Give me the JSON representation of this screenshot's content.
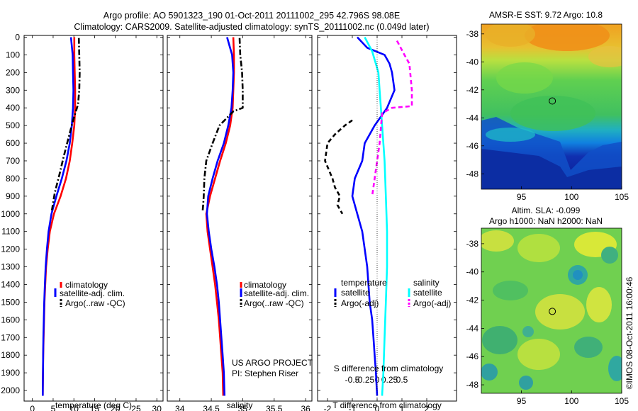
{
  "header": {
    "line1": "Argo profile: AO 5901323_190 01-Oct-2011 20111002_295 42.796S 98.08E",
    "line2": "Climatology: CARS2009. Satellite-adjusted climatology: synTS_20111002.nc (0.049d later)"
  },
  "depth_ticks": [
    "0",
    "100",
    "200",
    "300",
    "400",
    "500",
    "600",
    "700",
    "800",
    "900",
    "1000",
    "1100",
    "1200",
    "1300",
    "1400",
    "1500",
    "1600",
    "1700",
    "1800",
    "1900",
    "2000"
  ],
  "chart_data": [
    {
      "type": "line",
      "id": "temperature",
      "xlabel": "temperature (deg C)",
      "xlim": [
        -2,
        31.5
      ],
      "ylim": [
        2060,
        -10
      ],
      "xticks": [
        0,
        5,
        10,
        15,
        20,
        25,
        30
      ],
      "xtick_labels": [
        "0",
        "5",
        "10",
        "15",
        "20",
        "25",
        "30"
      ],
      "legend": [
        "climatology",
        "satellite-adj. clim.",
        "Argo(..raw -QC)"
      ],
      "series": [
        {
          "name": "climatology",
          "color": "#ff0000",
          "style": "solid",
          "x": [
            10.1,
            10.1,
            10.2,
            10.3,
            10.3,
            10.1,
            9.6,
            9.0,
            8.1,
            6.8,
            5.2,
            4.2,
            3.7,
            3.3,
            3.1,
            2.9,
            2.8,
            2.7,
            2.6,
            2.55,
            2.5
          ],
          "y": [
            0,
            100,
            200,
            300,
            400,
            500,
            600,
            700,
            800,
            900,
            1000,
            1100,
            1200,
            1300,
            1400,
            1500,
            1600,
            1700,
            1800,
            1900,
            2030
          ]
        },
        {
          "name": "satellite-adj. clim.",
          "color": "#0000ff",
          "style": "solid",
          "x": [
            9.3,
            9.7,
            9.8,
            9.9,
            9.8,
            9.5,
            9.0,
            8.2,
            7.1,
            5.8,
            4.6,
            3.9,
            3.5,
            3.2,
            3.0,
            2.85,
            2.75,
            2.65,
            2.6,
            2.55,
            2.5
          ],
          "y": [
            0,
            100,
            200,
            300,
            400,
            500,
            600,
            700,
            800,
            900,
            1000,
            1100,
            1200,
            1300,
            1400,
            1500,
            1600,
            1700,
            1800,
            1900,
            2030
          ]
        },
        {
          "name": "Argo(..raw -QC)",
          "color": "#000000",
          "style": "dashdot",
          "x": [
            11.2,
            11.3,
            11.4,
            11.3,
            11.0,
            9.7,
            8.6,
            7.5,
            6.5,
            5.4,
            4.7
          ],
          "y": [
            5,
            100,
            200,
            300,
            380,
            480,
            580,
            680,
            780,
            880,
            980
          ]
        }
      ]
    },
    {
      "type": "line",
      "id": "salinity",
      "xlabel": "salinity",
      "xlim": [
        33.8,
        36.1
      ],
      "ylim": [
        2060,
        -10
      ],
      "xticks": [
        34,
        34.5,
        35,
        35.5,
        36
      ],
      "xtick_labels": [
        "34",
        "34.5",
        "35",
        "35.5",
        "36"
      ],
      "legend": [
        "climatology",
        "satellite-adj. clim.",
        "Argo(..raw -QC)"
      ],
      "series": [
        {
          "name": "climatology",
          "color": "#ff0000",
          "style": "solid",
          "x": [
            34.85,
            34.86,
            34.86,
            34.85,
            34.84,
            34.8,
            34.73,
            34.64,
            34.56,
            34.48,
            34.42,
            34.44,
            34.48,
            34.52,
            34.56,
            34.59,
            34.62,
            34.64,
            34.66,
            34.68,
            34.69
          ],
          "y": [
            0,
            100,
            200,
            300,
            400,
            500,
            600,
            700,
            800,
            900,
            1000,
            1100,
            1200,
            1300,
            1400,
            1500,
            1600,
            1700,
            1800,
            1900,
            2030
          ]
        },
        {
          "name": "satellite-adj. clim.",
          "color": "#0000ff",
          "style": "solid",
          "x": [
            34.75,
            34.83,
            34.85,
            34.84,
            34.82,
            34.77,
            34.7,
            34.6,
            34.52,
            34.45,
            34.43,
            34.46,
            34.5,
            34.55,
            34.59,
            34.62,
            34.64,
            34.66,
            34.68,
            34.7,
            34.71
          ],
          "y": [
            0,
            100,
            200,
            300,
            400,
            500,
            600,
            700,
            800,
            900,
            1000,
            1100,
            1200,
            1300,
            1400,
            1500,
            1600,
            1700,
            1800,
            1900,
            2030
          ]
        },
        {
          "name": "Argo(..raw -QC)",
          "color": "#000000",
          "style": "dashdot",
          "x": [
            34.95,
            34.96,
            34.99,
            35.0,
            35.0,
            34.85,
            34.63,
            34.52,
            34.42,
            34.39,
            34.38,
            34.37,
            34.36
          ],
          "y": [
            5,
            100,
            200,
            300,
            400,
            420,
            500,
            600,
            700,
            800,
            900,
            950,
            990
          ]
        }
      ]
    },
    {
      "type": "line",
      "id": "difference",
      "xlabel": "T difference from climatology",
      "xlabel2": "S difference from climatology",
      "xlim": [
        -2.4,
        3.2
      ],
      "ylim": [
        2060,
        -10
      ],
      "xticks": [
        -2,
        -1,
        0,
        1,
        2
      ],
      "xtick_labels": [
        "-2",
        "-1",
        "0",
        "1",
        "2"
      ],
      "s_xticks": [
        -1,
        -0.5,
        0,
        0.5,
        1
      ],
      "s_xtick_labels": [
        "-0.5",
        "-0.25",
        "0",
        "0.25",
        "0.5"
      ],
      "legend_headers": [
        "temperature",
        "salinity"
      ],
      "legend": [
        "satellite",
        "Argo(-adj)",
        "satellite",
        "Argo(-adj)"
      ],
      "series": [
        {
          "name": "satellite",
          "color": "#0000ff",
          "style": "solid",
          "x": [
            -0.8,
            -0.4,
            0.3,
            0.5,
            0.6,
            0.7,
            0.4,
            -0.1,
            -0.5,
            -0.6,
            -0.9,
            -1.0,
            -0.8,
            -0.6,
            -0.4,
            -0.3,
            -0.2,
            -0.15,
            -0.1,
            -0.05,
            0.0
          ],
          "y": [
            0,
            60,
            100,
            150,
            200,
            300,
            400,
            500,
            600,
            700,
            800,
            900,
            1000,
            1100,
            1300,
            1500,
            1600,
            1700,
            1800,
            1900,
            2030
          ]
        },
        {
          "name": "Argo(-adj)",
          "color": "#000000",
          "style": "dashed",
          "x": [
            -1.0,
            -1.3,
            -1.7,
            -2.0,
            -2.1,
            -1.8,
            -1.7,
            -1.5,
            -1.6,
            -1.4
          ],
          "y": [
            470,
            500,
            550,
            600,
            700,
            800,
            850,
            900,
            950,
            1000
          ]
        },
        {
          "name": "satellite",
          "color": "#00ffff",
          "style": "solid",
          "x": [
            -0.5,
            -0.2,
            0.05,
            0.1,
            0.15,
            0.2,
            0.25,
            0.3,
            0.35,
            0.4,
            0.4,
            0.35,
            0.3,
            0.25,
            0.2
          ],
          "y": [
            0,
            80,
            200,
            300,
            400,
            500,
            600,
            700,
            900,
            1100,
            1300,
            1500,
            1700,
            1900,
            2030
          ]
        },
        {
          "name": "Argo(-adj)",
          "color": "#ff00ff",
          "style": "dashed",
          "x": [
            0.8,
            1.1,
            1.3,
            1.4,
            1.4,
            0.6,
            0.2,
            0.1,
            0.0,
            -0.1,
            -0.2
          ],
          "y": [
            20,
            100,
            150,
            300,
            390,
            400,
            430,
            600,
            700,
            800,
            900
          ]
        }
      ]
    },
    {
      "type": "heatmap",
      "id": "sst-map",
      "title": "AMSR-E SST: 9.72 Argo: 10.8",
      "xlim": [
        91,
        105
      ],
      "ylim": [
        -49.1,
        -37.3
      ],
      "xticks": [
        95,
        100,
        105
      ],
      "xtick_labels": [
        "95",
        "100",
        "105"
      ],
      "yticks": [
        -38,
        -40,
        -42,
        -44,
        -46,
        -48
      ],
      "ytick_labels": [
        "-38",
        "-40",
        "-42",
        "-44",
        "-46",
        "-48"
      ],
      "marker": {
        "x": 98.08,
        "y": -42.796
      }
    },
    {
      "type": "heatmap",
      "id": "sla-map",
      "title": "Altim. SLA: -0.099",
      "subtitle": "Argo h1000: NaN h2000: NaN",
      "xlim": [
        91,
        105
      ],
      "ylim": [
        -48.6,
        -36.9
      ],
      "xticks": [
        95,
        100,
        105
      ],
      "xtick_labels": [
        "95",
        "100",
        "105"
      ],
      "yticks": [
        -38,
        -40,
        -42,
        -44,
        -46,
        -48
      ],
      "ytick_labels": [
        "-38",
        "-40",
        "-42",
        "-44",
        "-46",
        "-48"
      ],
      "marker": {
        "x": 98.08,
        "y": -42.796
      }
    }
  ],
  "footer": {
    "project": "US ARGO PROJECT",
    "pi": "PI: Stephen Riser",
    "stamp": "©IMOS 08-Oct-2011 16:00:46"
  }
}
